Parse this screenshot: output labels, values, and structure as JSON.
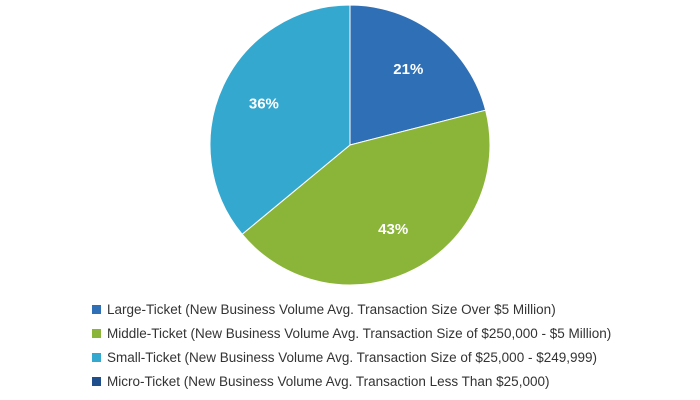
{
  "chart_data": {
    "type": "pie",
    "title": "",
    "legend_position": "bottom",
    "slices": [
      {
        "name": "Large-Ticket (New Business Volume Avg. Transaction Size Over $5 Million)",
        "value": 21,
        "label": "21%",
        "color": "#2f6fb6"
      },
      {
        "name": "Middle-Ticket (New Business Volume Avg. Transaction Size of $250,000 - $5 Million)",
        "value": 43,
        "label": "43%",
        "color": "#8bb539"
      },
      {
        "name": "Small-Ticket (New Business Volume Avg. Transaction Size of $25,000 - $249,999)",
        "value": 36,
        "label": "36%",
        "color": "#35a8cf"
      },
      {
        "name": "Micro-Ticket (New Business Volume Avg. Transaction Less Than $25,000)",
        "value": 0,
        "label": "",
        "color": "#1f4e8c"
      }
    ]
  }
}
